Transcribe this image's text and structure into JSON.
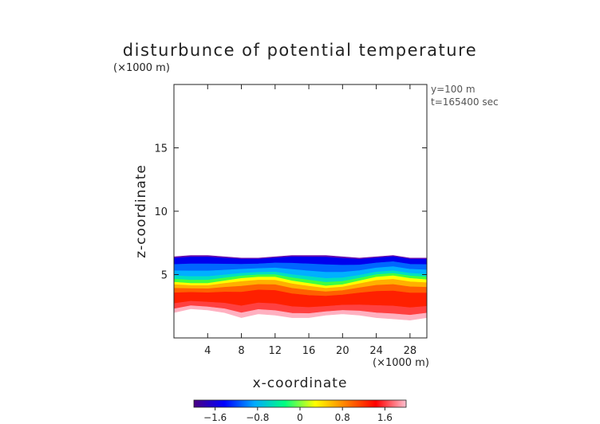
{
  "chart_data": {
    "type": "heatmap",
    "title": "disturbunce of potential temperature",
    "xlabel": "x-coordinate",
    "ylabel": "z-coordinate",
    "x_unit": "(×1000 m)",
    "y_unit": "(×1000 m)",
    "annotations": [
      "y=100 m",
      "t=165400 sec"
    ],
    "xlim": [
      0,
      30
    ],
    "ylim": [
      0,
      20
    ],
    "x_ticks": [
      4,
      8,
      12,
      16,
      20,
      24,
      28
    ],
    "y_ticks": [
      5,
      10,
      15
    ],
    "colorbar": {
      "min": -2.0,
      "max": 2.0,
      "ticks": [
        -1.6,
        -0.8,
        0,
        0.8,
        1.6
      ],
      "tick_labels": [
        "−1.6",
        "−0.8",
        "0",
        "0.8",
        "1.6"
      ],
      "colors": [
        "#4b0082",
        "#0000ff",
        "#00aaff",
        "#00ff80",
        "#ffff00",
        "#ff8000",
        "#ff0000",
        "#ffc0d0"
      ]
    },
    "field": {
      "x": [
        0,
        2,
        4,
        6,
        8,
        10,
        12,
        14,
        16,
        18,
        20,
        22,
        24,
        26,
        28,
        30
      ],
      "top": [
        6.4,
        6.5,
        6.5,
        6.4,
        6.3,
        6.3,
        6.4,
        6.5,
        6.5,
        6.5,
        6.4,
        6.3,
        6.4,
        6.5,
        6.3,
        6.3
      ],
      "bottom": [
        2.0,
        2.3,
        2.2,
        2.0,
        1.6,
        1.9,
        1.8,
        1.6,
        1.6,
        1.8,
        1.9,
        1.8,
        1.6,
        1.5,
        1.4,
        1.6
      ],
      "zero_level": [
        4.4,
        4.3,
        4.3,
        4.5,
        4.7,
        4.8,
        4.8,
        4.5,
        4.3,
        4.1,
        4.2,
        4.5,
        4.8,
        4.9,
        4.7,
        4.6
      ]
    }
  }
}
